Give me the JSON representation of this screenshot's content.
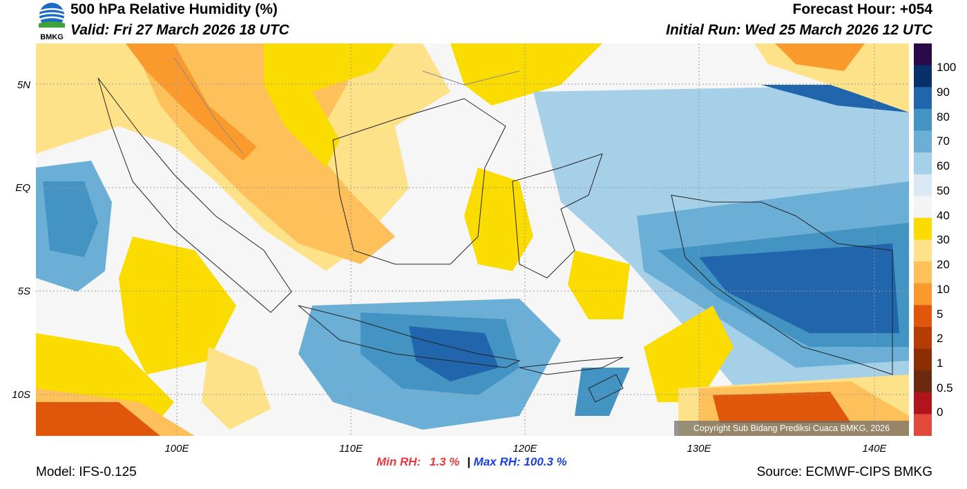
{
  "header": {
    "title": "500 hPa Relative Humidity (%)",
    "valid": "Valid: Fri 27 March 2026 18 UTC",
    "forecast_hour": "Forecast Hour: +054",
    "initial_run": "Initial Run: Wed 25 March 2026 12 UTC"
  },
  "logo": {
    "text": "BMKG"
  },
  "map": {
    "lat_labels": [
      "5N",
      "EQ",
      "5S",
      "10S"
    ],
    "lon_labels": [
      "100E",
      "110E",
      "120E",
      "130E",
      "140E"
    ],
    "copyright": "Copyright Sub Bidang Prediksi Cuaca BMKG, 2026"
  },
  "stats": {
    "min_label": "Min RH:",
    "min_value": "1.3 %",
    "separator": "|",
    "max_label": "Max RH:",
    "max_value": "100.3 %"
  },
  "footer": {
    "model": "Model: IFS-0.125",
    "source": "Source: ECMWF-CIPS BMKG"
  },
  "colorbar": {
    "labels": [
      "100",
      "90",
      "80",
      "70",
      "60",
      "50",
      "40",
      "30",
      "20",
      "10",
      "5",
      "2",
      "1",
      "0.5",
      "0"
    ],
    "colors": [
      "#2b0a4a",
      "#08306b",
      "#2166ac",
      "#4393c3",
      "#6baed6",
      "#a6cfe8",
      "#dbe9f4",
      "#f4f4f4",
      "#fadc00",
      "#fde28a",
      "#fdc05a",
      "#fb9a2c",
      "#e0560b",
      "#b63c06",
      "#8c2d04",
      "#6b2a0e",
      "#b0151d",
      "#e24a3b"
    ]
  }
}
